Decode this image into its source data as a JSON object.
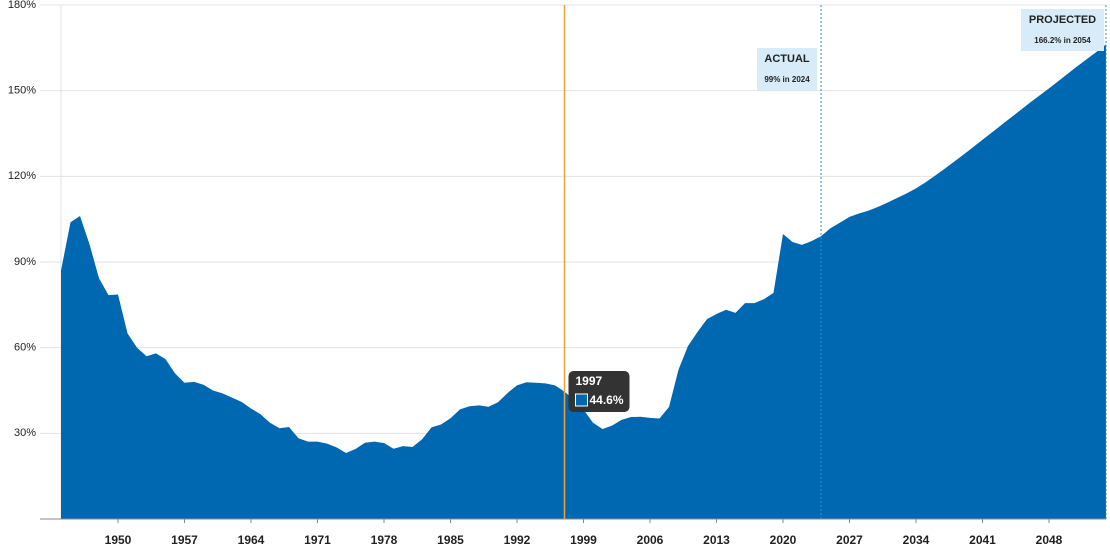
{
  "chart_data": {
    "type": "area",
    "color": "#0067b1",
    "grid": true,
    "xlim": [
      1944,
      2054
    ],
    "ylim": [
      0,
      180
    ],
    "xticks": [
      1950,
      1957,
      1964,
      1971,
      1978,
      1985,
      1992,
      1999,
      2006,
      2013,
      2020,
      2027,
      2034,
      2041,
      2048
    ],
    "yticks": [
      {
        "value": 30,
        "label": "30%"
      },
      {
        "value": 60,
        "label": "60%"
      },
      {
        "value": 90,
        "label": "90%"
      },
      {
        "value": 120,
        "label": "120%"
      },
      {
        "value": 150,
        "label": "150%"
      },
      {
        "value": 180,
        "label": "180%"
      }
    ],
    "x": [
      1944,
      1945,
      1946,
      1947,
      1948,
      1949,
      1950,
      1951,
      1952,
      1953,
      1954,
      1955,
      1956,
      1957,
      1958,
      1959,
      1960,
      1961,
      1962,
      1963,
      1964,
      1965,
      1966,
      1967,
      1968,
      1969,
      1970,
      1971,
      1972,
      1973,
      1974,
      1975,
      1976,
      1977,
      1978,
      1979,
      1980,
      1981,
      1982,
      1983,
      1984,
      1985,
      1986,
      1987,
      1988,
      1989,
      1990,
      1991,
      1992,
      1993,
      1994,
      1995,
      1996,
      1997,
      1998,
      1999,
      2000,
      2001,
      2002,
      2003,
      2004,
      2005,
      2006,
      2007,
      2008,
      2009,
      2010,
      2011,
      2012,
      2013,
      2014,
      2015,
      2016,
      2017,
      2018,
      2019,
      2020,
      2021,
      2022,
      2023,
      2024,
      2025,
      2026,
      2027,
      2028,
      2029,
      2030,
      2031,
      2032,
      2033,
      2034,
      2035,
      2036,
      2037,
      2038,
      2039,
      2040,
      2041,
      2042,
      2043,
      2044,
      2045,
      2046,
      2047,
      2048,
      2049,
      2050,
      2051,
      2052,
      2053,
      2054
    ],
    "values": [
      87,
      103.9,
      106.1,
      96.2,
      84.3,
      78.4,
      78.6,
      65,
      60,
      57,
      58,
      56,
      51,
      47.7,
      48,
      47,
      45,
      44,
      42.5,
      41,
      38.7,
      36.7,
      33.7,
      31.8,
      32.2,
      28.3,
      27.1,
      27.1,
      26.4,
      25.1,
      23.1,
      24.5,
      26.7,
      27.1,
      26.6,
      24.6,
      25.5,
      25.2,
      27.9,
      32.1,
      33.1,
      35.3,
      38.4,
      39.5,
      39.8,
      39.3,
      40.9,
      44.1,
      46.8,
      47.9,
      47.7,
      47.5,
      46.8,
      44.6,
      41.7,
      38.3,
      33.7,
      31.5,
      32.7,
      34.7,
      35.7,
      35.8,
      35.4,
      35.2,
      39.2,
      52.3,
      60.6,
      65.5,
      70,
      71.8,
      73.3,
      72.2,
      75.6,
      75.6,
      77,
      79.2,
      99.8,
      97,
      96,
      97.3,
      99,
      101.8,
      103.8,
      105.8,
      107,
      108,
      109.3,
      110.8,
      112.4,
      114,
      115.8,
      117.9,
      120.2,
      122.6,
      125.1,
      127.6,
      130.2,
      132.8,
      135.4,
      138,
      140.6,
      143.2,
      145.8,
      148.3,
      150.8,
      153.4,
      156,
      158.6,
      161.1,
      163.6,
      166.2
    ],
    "annotations": [
      {
        "x": 2024,
        "title": "ACTUAL",
        "text": "99% in 2024"
      },
      {
        "x": 2054,
        "title": "PROJECTED",
        "text": "166.2% in 2054"
      }
    ],
    "tooltip": {
      "x": 1997,
      "y": {
        "value": 44.6,
        "label": "44.6%"
      }
    }
  }
}
